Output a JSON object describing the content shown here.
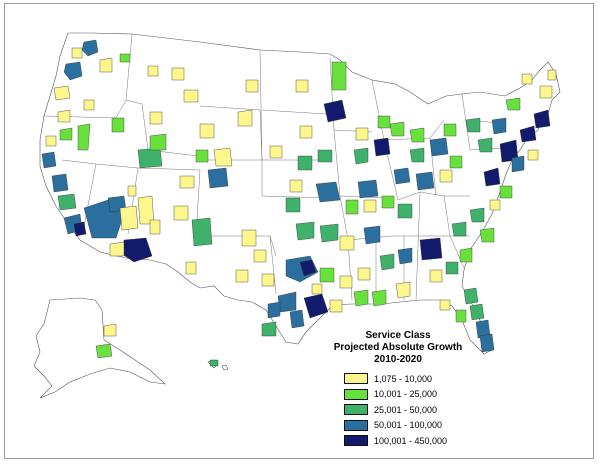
{
  "legend": {
    "title_lines": [
      "Service Class",
      "Projected Absolute Growth",
      "2010-2020"
    ],
    "items": [
      {
        "label": "1,075 - 10,000",
        "color": "#fdf68c"
      },
      {
        "label": "10,001 - 25,000",
        "color": "#6ae03e"
      },
      {
        "label": "25,001 - 50,000",
        "color": "#3fb16b"
      },
      {
        "label": "50,001 - 100,000",
        "color": "#2a6f9d"
      },
      {
        "label": "100,001 - 450,000",
        "color": "#121a6b"
      }
    ]
  }
}
